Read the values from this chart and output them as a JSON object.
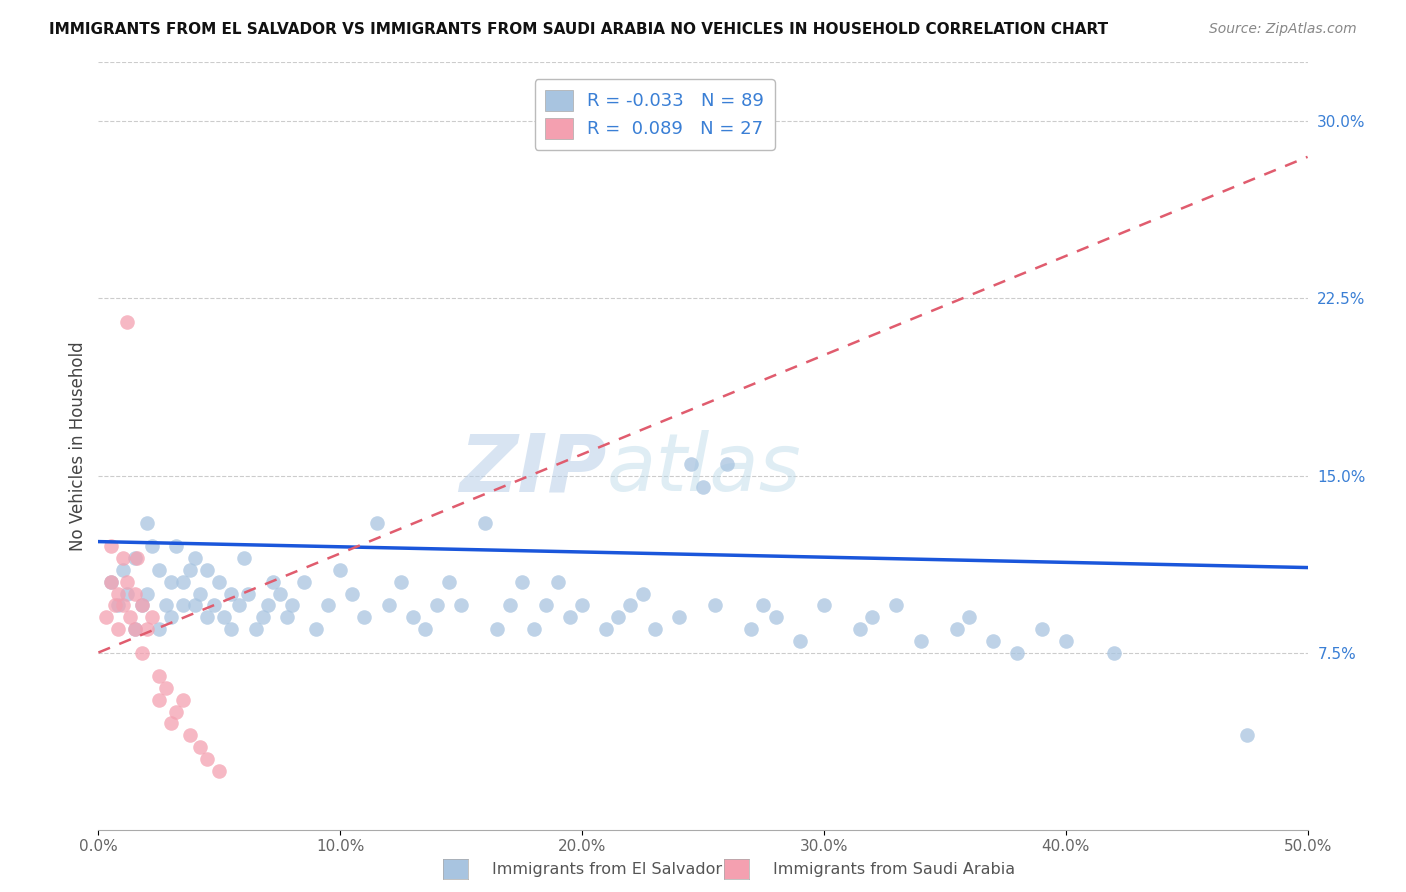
{
  "title": "IMMIGRANTS FROM EL SALVADOR VS IMMIGRANTS FROM SAUDI ARABIA NO VEHICLES IN HOUSEHOLD CORRELATION CHART",
  "source": "Source: ZipAtlas.com",
  "xlabel_blue": "Immigrants from El Salvador",
  "xlabel_pink": "Immigrants from Saudi Arabia",
  "ylabel": "No Vehicles in Household",
  "xlim": [
    0.0,
    0.5
  ],
  "ylim": [
    0.0,
    0.325
  ],
  "xtick_positions": [
    0.0,
    0.1,
    0.2,
    0.3,
    0.4,
    0.5
  ],
  "xtick_labels": [
    "0.0%",
    "10.0%",
    "20.0%",
    "30.0%",
    "40.0%",
    "50.0%"
  ],
  "ytick_positions": [
    0.075,
    0.15,
    0.225,
    0.3
  ],
  "ytick_labels": [
    "7.5%",
    "15.0%",
    "22.5%",
    "30.0%"
  ],
  "R_blue": -0.033,
  "N_blue": 89,
  "R_pink": 0.089,
  "N_pink": 27,
  "color_blue": "#a8c4e0",
  "color_pink": "#f4a0b0",
  "line_color_blue": "#1a56db",
  "line_color_pink": "#e05c6e",
  "watermark": "ZIPatlas",
  "watermark_color": "#c8d8ea",
  "blue_intercept": 0.122,
  "blue_slope": -0.022,
  "pink_intercept": 0.075,
  "pink_slope": 0.42,
  "blue_points_x": [
    0.005,
    0.008,
    0.01,
    0.012,
    0.015,
    0.015,
    0.018,
    0.02,
    0.02,
    0.022,
    0.025,
    0.025,
    0.028,
    0.03,
    0.03,
    0.032,
    0.035,
    0.035,
    0.038,
    0.04,
    0.04,
    0.042,
    0.045,
    0.045,
    0.048,
    0.05,
    0.052,
    0.055,
    0.055,
    0.058,
    0.06,
    0.062,
    0.065,
    0.068,
    0.07,
    0.072,
    0.075,
    0.078,
    0.08,
    0.085,
    0.09,
    0.095,
    0.1,
    0.105,
    0.11,
    0.115,
    0.12,
    0.125,
    0.13,
    0.135,
    0.14,
    0.145,
    0.15,
    0.16,
    0.165,
    0.17,
    0.175,
    0.18,
    0.185,
    0.19,
    0.195,
    0.2,
    0.21,
    0.215,
    0.22,
    0.225,
    0.23,
    0.24,
    0.245,
    0.25,
    0.255,
    0.26,
    0.27,
    0.275,
    0.28,
    0.29,
    0.3,
    0.315,
    0.32,
    0.33,
    0.34,
    0.355,
    0.36,
    0.37,
    0.38,
    0.39,
    0.4,
    0.42,
    0.475
  ],
  "blue_points_y": [
    0.105,
    0.095,
    0.11,
    0.1,
    0.085,
    0.115,
    0.095,
    0.13,
    0.1,
    0.12,
    0.085,
    0.11,
    0.095,
    0.105,
    0.09,
    0.12,
    0.095,
    0.105,
    0.11,
    0.095,
    0.115,
    0.1,
    0.09,
    0.11,
    0.095,
    0.105,
    0.09,
    0.085,
    0.1,
    0.095,
    0.115,
    0.1,
    0.085,
    0.09,
    0.095,
    0.105,
    0.1,
    0.09,
    0.095,
    0.105,
    0.085,
    0.095,
    0.11,
    0.1,
    0.09,
    0.13,
    0.095,
    0.105,
    0.09,
    0.085,
    0.095,
    0.105,
    0.095,
    0.13,
    0.085,
    0.095,
    0.105,
    0.085,
    0.095,
    0.105,
    0.09,
    0.095,
    0.085,
    0.09,
    0.095,
    0.1,
    0.085,
    0.09,
    0.155,
    0.145,
    0.095,
    0.155,
    0.085,
    0.095,
    0.09,
    0.08,
    0.095,
    0.085,
    0.09,
    0.095,
    0.08,
    0.085,
    0.09,
    0.08,
    0.075,
    0.085,
    0.08,
    0.075,
    0.04
  ],
  "pink_points_x": [
    0.003,
    0.005,
    0.005,
    0.007,
    0.008,
    0.008,
    0.01,
    0.01,
    0.012,
    0.013,
    0.015,
    0.015,
    0.016,
    0.018,
    0.018,
    0.02,
    0.022,
    0.025,
    0.025,
    0.028,
    0.03,
    0.032,
    0.035,
    0.038,
    0.042,
    0.045,
    0.05
  ],
  "pink_points_y": [
    0.09,
    0.12,
    0.105,
    0.095,
    0.085,
    0.1,
    0.115,
    0.095,
    0.105,
    0.09,
    0.085,
    0.1,
    0.115,
    0.095,
    0.075,
    0.085,
    0.09,
    0.065,
    0.055,
    0.06,
    0.045,
    0.05,
    0.055,
    0.04,
    0.035,
    0.03,
    0.025
  ],
  "pink_outlier_x": [
    0.012
  ],
  "pink_outlier_y": [
    0.215
  ]
}
